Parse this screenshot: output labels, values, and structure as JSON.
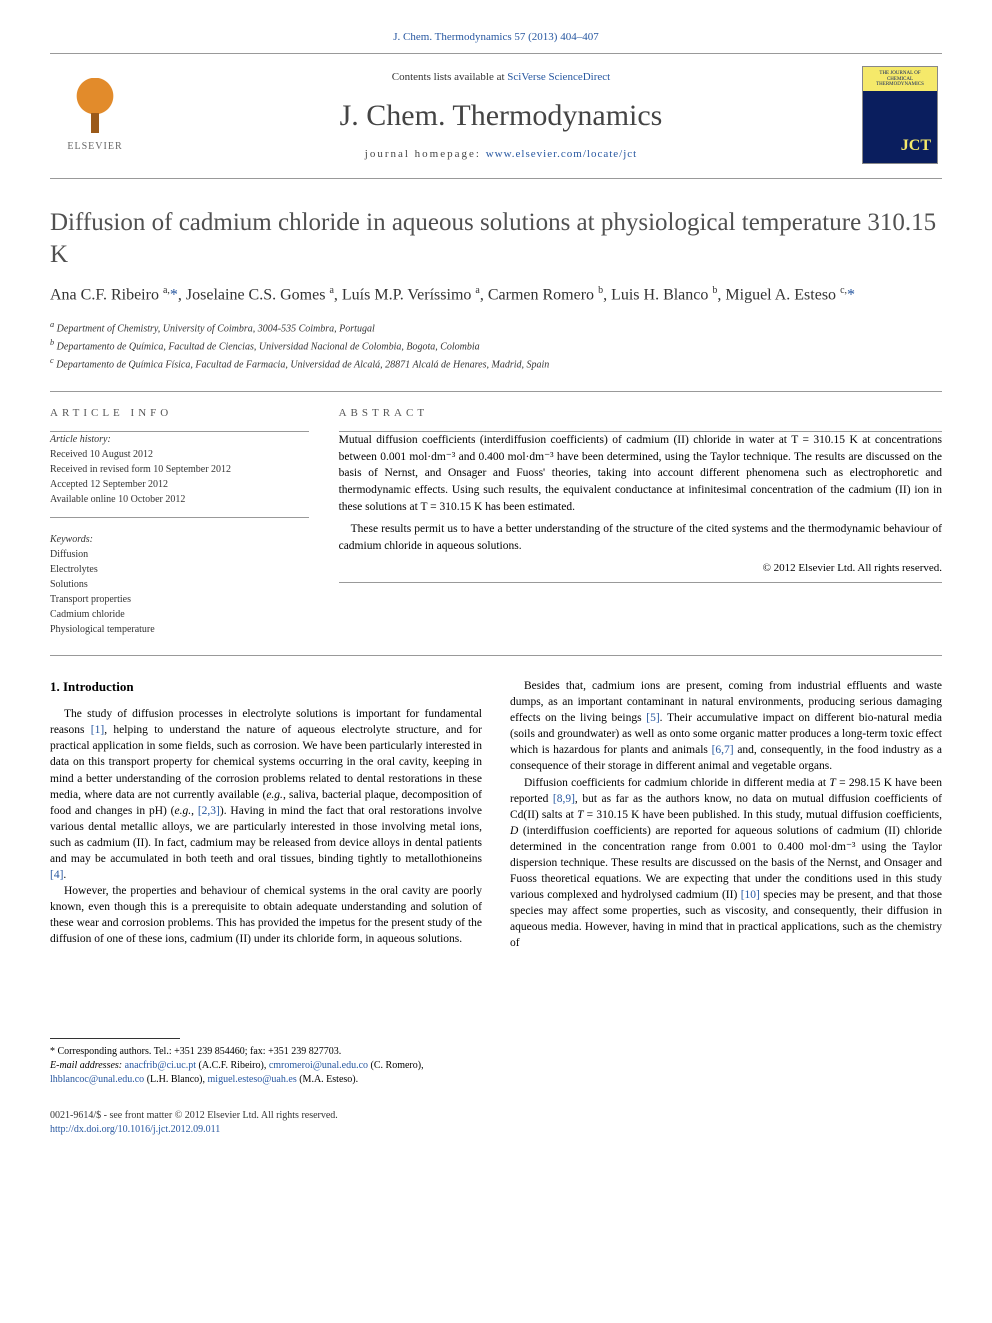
{
  "topcite": "J. Chem. Thermodynamics 57 (2013) 404–407",
  "masthead": {
    "contents_prefix": "Contents lists available at ",
    "contents_link": "SciVerse ScienceDirect",
    "journal_title": "J. Chem. Thermodynamics",
    "homepage_prefix": "journal homepage: ",
    "homepage_link": "www.elsevier.com/locate/jct",
    "publisher_label": "ELSEVIER"
  },
  "article": {
    "title": "Diffusion of cadmium chloride in aqueous solutions at physiological temperature 310.15 K",
    "authors_html": "Ana C.F. Ribeiro <sup>a,</sup><span class='corr'>*</span>, Joselaine C.S. Gomes <sup>a</sup>, Luís M.P. Veríssimo <sup>a</sup>, Carmen Romero <sup>b</sup>, Luis H. Blanco <sup>b</sup>, Miguel A. Esteso <sup>c,</sup><span class='corr'>*</span>",
    "affiliations": [
      "a Department of Chemistry, University of Coimbra, 3004-535 Coimbra, Portugal",
      "b Departamento de Química, Facultad de Ciencias, Universidad Nacional de Colombia, Bogota, Colombia",
      "c Departamento de Química Física, Facultad de Farmacia, Universidad de Alcalá, 28871 Alcalá de Henares, Madrid, Spain"
    ]
  },
  "info": {
    "section_label": "ARTICLE INFO",
    "history_label": "Article history:",
    "history": [
      "Received 10 August 2012",
      "Received in revised form 10 September 2012",
      "Accepted 12 September 2012",
      "Available online 10 October 2012"
    ],
    "keywords_label": "Keywords:",
    "keywords": [
      "Diffusion",
      "Electrolytes",
      "Solutions",
      "Transport properties",
      "Cadmium chloride",
      "Physiological temperature"
    ]
  },
  "abstract": {
    "section_label": "ABSTRACT",
    "paragraphs": [
      "Mutual diffusion coefficients (interdiffusion coefficients) of cadmium (II) chloride in water at T = 310.15 K at concentrations between 0.001 mol·dm⁻³ and 0.400 mol·dm⁻³ have been determined, using the Taylor technique. The results are discussed on the basis of Nernst, and Onsager and Fuoss' theories, taking into account different phenomena such as electrophoretic and thermodynamic effects. Using such results, the equivalent conductance at infinitesimal concentration of the cadmium (II) ion in these solutions at T = 310.15 K has been estimated.",
      "These results permit us to have a better understanding of the structure of the cited systems and the thermodynamic behaviour of cadmium chloride in aqueous solutions."
    ],
    "copyright": "© 2012 Elsevier Ltd. All rights reserved."
  },
  "body": {
    "heading": "1. Introduction",
    "paragraphs": [
      "The study of diffusion processes in electrolyte solutions is important for fundamental reasons <a class='ref'>[1]</a>, helping to understand the nature of aqueous electrolyte structure, and for practical application in some fields, such as corrosion. We have been particularly interested in data on this transport property for chemical systems occurring in the oral cavity, keeping in mind a better understanding of the corrosion problems related to dental restorations in these media, where data are not currently available (<span class='ital'>e.g.</span>, saliva, bacterial plaque, decomposition of food and changes in pH) (<span class='ital'>e.g.</span>, <a class='ref'>[2,3]</a>). Having in mind the fact that oral restorations involve various dental metallic alloys, we are particularly interested in those involving metal ions, such as cadmium (II). In fact, cadmium may be released from device alloys in dental patients and may be accumulated in both teeth and oral tissues, binding tightly to metallothioneins <a class='ref'>[4]</a>.",
      "However, the properties and behaviour of chemical systems in the oral cavity are poorly known, even though this is a prerequisite to obtain adequate understanding and solution of these wear and corrosion problems. This has provided the impetus for the present study of the diffusion of one of these ions, cadmium (II) under its chloride form, in aqueous solutions.",
      "Besides that, cadmium ions are present, coming from industrial effluents and waste dumps, as an important contaminant in natural environments, producing serious damaging effects on the living beings <a class='ref'>[5]</a>. Their accumulative impact on different bio-natural media (soils and groundwater) as well as onto some organic matter produces a long-term toxic effect which is hazardous for plants and animals <a class='ref'>[6,7]</a> and, consequently, in the food industry as a consequence of their storage in different animal and vegetable organs.",
      "Diffusion coefficients for cadmium chloride in different media at <span class='ital'>T</span> = 298.15 K have been reported <a class='ref'>[8,9]</a>, but as far as the authors know, no data on mutual diffusion coefficients of Cd(II) salts at <span class='ital'>T</span> = 310.15 K have been published. In this study, mutual diffusion coefficients, <span class='ital'>D</span> (interdiffusion coefficients) are reported for aqueous solutions of cadmium (II) chloride determined in the concentration range from 0.001 to 0.400 mol·dm⁻³ using the Taylor dispersion technique. These results are discussed on the basis of the Nernst, and Onsager and Fuoss theoretical equations. We are expecting that under the conditions used in this study various complexed and hydrolysed cadmium (II) <a class='ref'>[10]</a> species may be present, and that those species may affect some properties, such as viscosity, and consequently, their diffusion in aqueous media. However, having in mind that in practical applications, such as the chemistry of"
    ]
  },
  "footnotes": {
    "corr_line": "* Corresponding authors. Tel.: +351 239 854460; fax: +351 239 827703.",
    "email_label": "E-mail addresses:",
    "emails_html": "<a>anacfrib@ci.uc.pt</a> (A.C.F. Ribeiro), <a>cmromeroi@unal.edu.co</a> (C. Romero), <a>lhblancoc@unal.edu.co</a> (L.H. Blanco), <a>miguel.esteso@uah.es</a> (M.A. Esteso)."
  },
  "bottom": {
    "issn_line": "0021-9614/$ - see front matter © 2012 Elsevier Ltd. All rights reserved.",
    "doi": "http://dx.doi.org/10.1016/j.jct.2012.09.011"
  },
  "colors": {
    "link": "#2757a0",
    "text": "#000000",
    "gray": "#505050",
    "rule": "#999999"
  }
}
